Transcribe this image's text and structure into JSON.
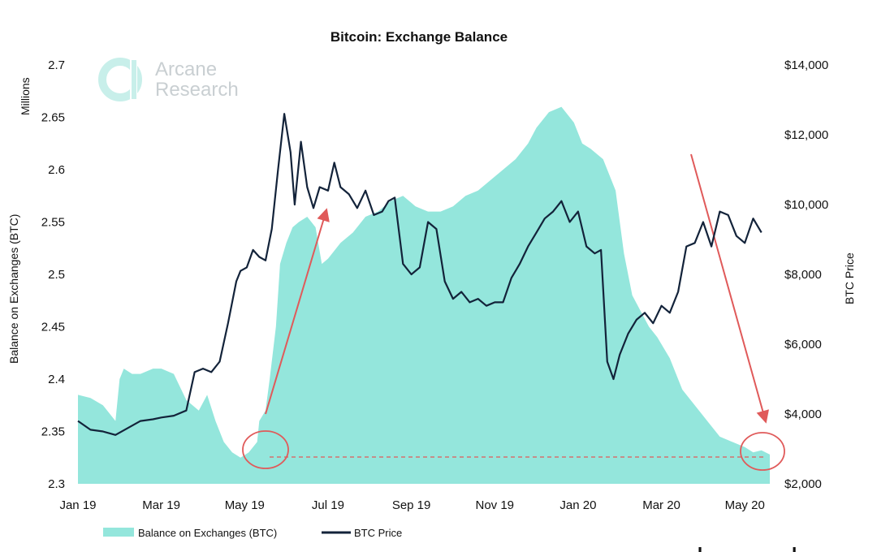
{
  "chart_data": {
    "type": "area+line",
    "title": "Bitcoin: Exchange Balance",
    "units_left": "Millions",
    "ylabel_left": "Balance on Exchanges (BTC)",
    "ylabel_right": "BTC Price",
    "left_ticks": [
      "2.3",
      "2.35",
      "2.4",
      "2.45",
      "2.5",
      "2.55",
      "2.6",
      "2.65",
      "2.7"
    ],
    "right_ticks": [
      "$2,000",
      "$4,000",
      "$6,000",
      "$8,000",
      "$10,000",
      "$12,000",
      "$14,000"
    ],
    "x_ticks": [
      "Jan 19",
      "Mar 19",
      "May 19",
      "Jul 19",
      "Sep 19",
      "Nov 19",
      "Jan 20",
      "Mar 20",
      "May 20"
    ],
    "ylim_left": [
      2.3,
      2.7
    ],
    "ylim_right": [
      2000,
      14000
    ],
    "xlim_months": [
      0,
      16.6
    ],
    "legend_position": "bottom-left",
    "colors": {
      "balance": "#94e6dc",
      "price": "#13233a",
      "annotation": "#e05a5a"
    },
    "series": [
      {
        "name": "Balance on Exchanges (BTC)",
        "kind": "area",
        "x": [
          0,
          0.3,
          0.6,
          0.9,
          1.0,
          1.1,
          1.3,
          1.5,
          1.8,
          2.0,
          2.3,
          2.6,
          2.9,
          3.1,
          3.3,
          3.5,
          3.7,
          3.9,
          4.1,
          4.3,
          4.35,
          4.5,
          4.6,
          4.75,
          4.85,
          5.0,
          5.15,
          5.3,
          5.5,
          5.7,
          5.85,
          6.0,
          6.3,
          6.6,
          6.9,
          7.2,
          7.5,
          7.8,
          8.1,
          8.4,
          8.7,
          9.0,
          9.3,
          9.6,
          9.9,
          10.2,
          10.5,
          10.8,
          11.0,
          11.3,
          11.6,
          11.9,
          12.1,
          12.3,
          12.6,
          12.9,
          13.1,
          13.3,
          13.5,
          13.7,
          13.9,
          14.2,
          14.5,
          14.8,
          15.1,
          15.4,
          15.7,
          16.0,
          16.2,
          16.4,
          16.6
        ],
        "y": [
          2.385,
          2.382,
          2.375,
          2.36,
          2.4,
          2.41,
          2.405,
          2.405,
          2.41,
          2.41,
          2.405,
          2.38,
          2.37,
          2.385,
          2.36,
          2.34,
          2.33,
          2.325,
          2.33,
          2.34,
          2.36,
          2.37,
          2.4,
          2.45,
          2.51,
          2.53,
          2.545,
          2.55,
          2.555,
          2.545,
          2.51,
          2.515,
          2.53,
          2.54,
          2.555,
          2.56,
          2.57,
          2.575,
          2.565,
          2.56,
          2.56,
          2.565,
          2.575,
          2.58,
          2.59,
          2.6,
          2.61,
          2.625,
          2.64,
          2.655,
          2.66,
          2.645,
          2.625,
          2.62,
          2.61,
          2.58,
          2.52,
          2.48,
          2.465,
          2.45,
          2.44,
          2.42,
          2.39,
          2.375,
          2.36,
          2.345,
          2.34,
          2.335,
          2.33,
          2.332,
          2.328
        ]
      },
      {
        "name": "BTC Price",
        "kind": "line",
        "x": [
          0,
          0.3,
          0.6,
          0.9,
          1.2,
          1.5,
          1.8,
          2.0,
          2.3,
          2.6,
          2.8,
          3.0,
          3.2,
          3.4,
          3.6,
          3.8,
          3.9,
          4.05,
          4.2,
          4.35,
          4.5,
          4.65,
          4.8,
          4.95,
          5.1,
          5.2,
          5.35,
          5.5,
          5.65,
          5.8,
          6.0,
          6.15,
          6.3,
          6.5,
          6.7,
          6.9,
          7.1,
          7.3,
          7.45,
          7.6,
          7.8,
          8.0,
          8.2,
          8.4,
          8.6,
          8.8,
          9.0,
          9.2,
          9.4,
          9.6,
          9.8,
          10.0,
          10.2,
          10.4,
          10.6,
          10.8,
          11.0,
          11.2,
          11.4,
          11.6,
          11.8,
          12.0,
          12.2,
          12.4,
          12.55,
          12.7,
          12.85,
          13.0,
          13.2,
          13.4,
          13.6,
          13.8,
          14.0,
          14.2,
          14.4,
          14.6,
          14.8,
          15.0,
          15.2,
          15.4,
          15.6,
          15.8,
          16.0,
          16.2,
          16.4
        ],
        "y": [
          3800,
          3550,
          3500,
          3400,
          3600,
          3800,
          3850,
          3900,
          3950,
          4100,
          5200,
          5300,
          5200,
          5500,
          6600,
          7800,
          8100,
          8200,
          8700,
          8500,
          8400,
          9300,
          11000,
          12600,
          11500,
          10000,
          11800,
          10500,
          9900,
          10500,
          10400,
          11200,
          10500,
          10300,
          9900,
          10400,
          9700,
          9800,
          10100,
          10200,
          8300,
          8000,
          8200,
          9500,
          9300,
          7800,
          7300,
          7500,
          7200,
          7300,
          7100,
          7200,
          7200,
          7900,
          8300,
          8800,
          9200,
          9600,
          9800,
          10100,
          9500,
          9800,
          8800,
          8600,
          8700,
          5500,
          5000,
          5700,
          6300,
          6700,
          6900,
          6600,
          7100,
          6900,
          7500,
          8800,
          8900,
          9500,
          8800,
          9800,
          9700,
          9100,
          8900,
          9600,
          9200
        ]
      }
    ]
  },
  "branding": {
    "logo_line1": "Arcane",
    "logo_line2": "Research",
    "watermark": "glassnode"
  }
}
